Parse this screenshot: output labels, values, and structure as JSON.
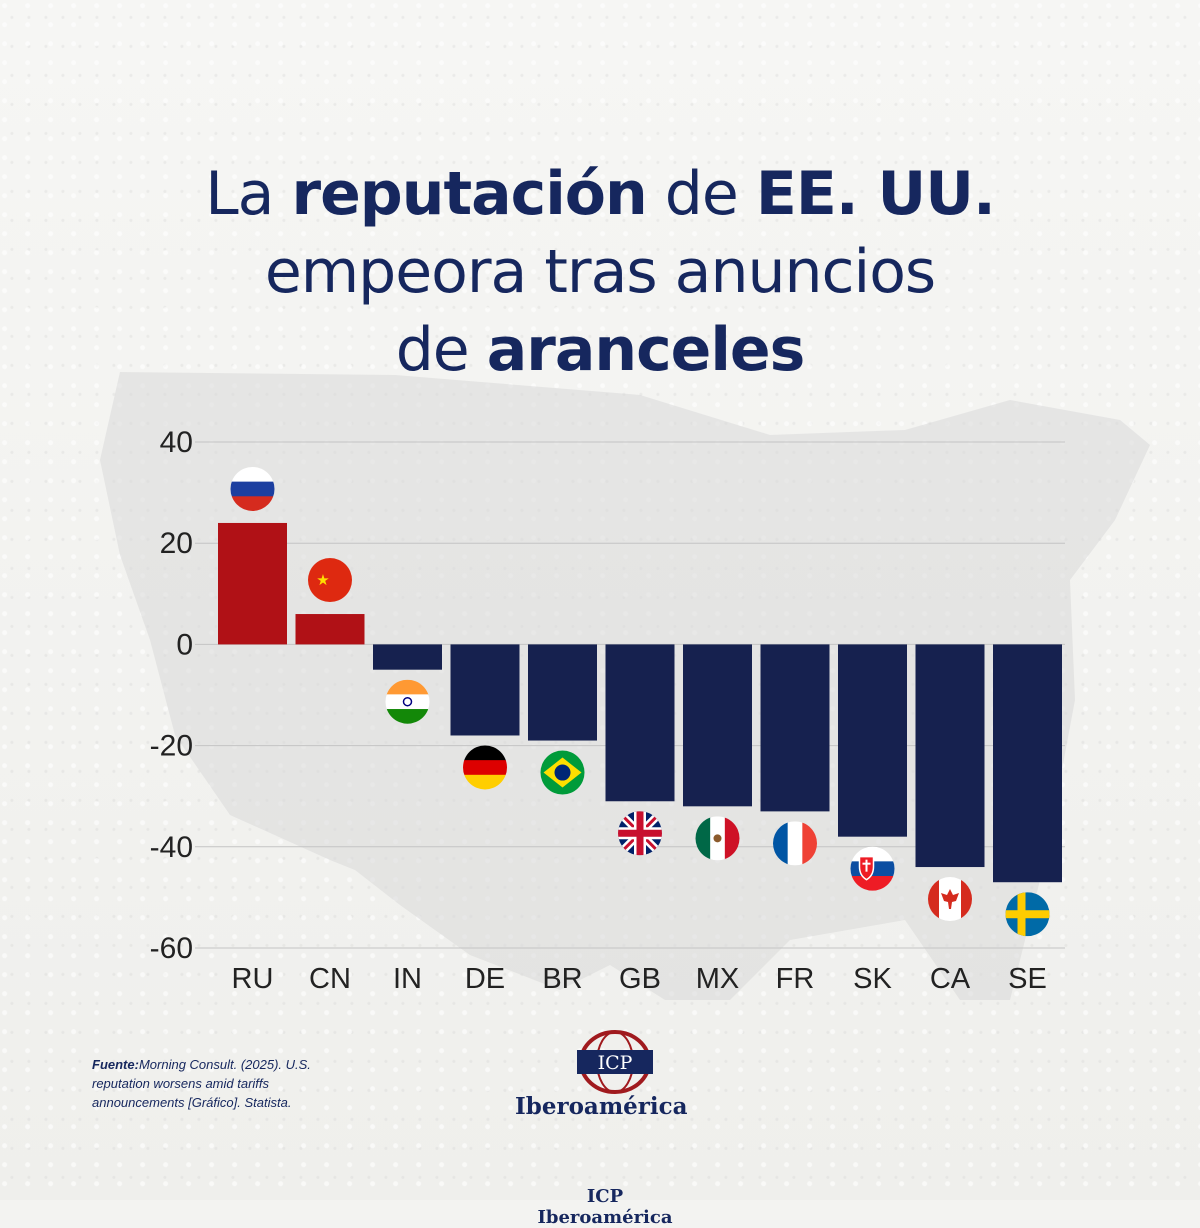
{
  "title": {
    "line1": {
      "a": "La ",
      "b": "reputación",
      "c": " de ",
      "d": "EE. UU."
    },
    "line2": "empeora tras anuncios",
    "line3": {
      "a": "de ",
      "b": "aranceles"
    }
  },
  "chart_data": {
    "type": "bar",
    "categories": [
      "RU",
      "CN",
      "IN",
      "DE",
      "BR",
      "GB",
      "MX",
      "FR",
      "SK",
      "CA",
      "SE"
    ],
    "values": [
      24,
      6,
      -5,
      -18,
      -19,
      -31,
      -32,
      -33,
      -38,
      -44,
      -47
    ],
    "ylim": [
      -60,
      40
    ],
    "yticks": [
      40,
      20,
      0,
      -20,
      -40,
      -60
    ],
    "grid": true,
    "colors": {
      "positive": "#b01116",
      "negative": "#16214f",
      "grid": "#c4c4c4",
      "text": "#222222"
    }
  },
  "source": {
    "label": "Fuente:",
    "text": "Morning Consult. (2025). U.S. reputation worsens amid tariffs announcements [Gráfico]. Statista."
  },
  "logo": {
    "acronym": "ICP",
    "name": "Iberoamérica",
    "icon": "globe-logo-icon"
  },
  "footer_partial": "ICP Iberoamérica"
}
